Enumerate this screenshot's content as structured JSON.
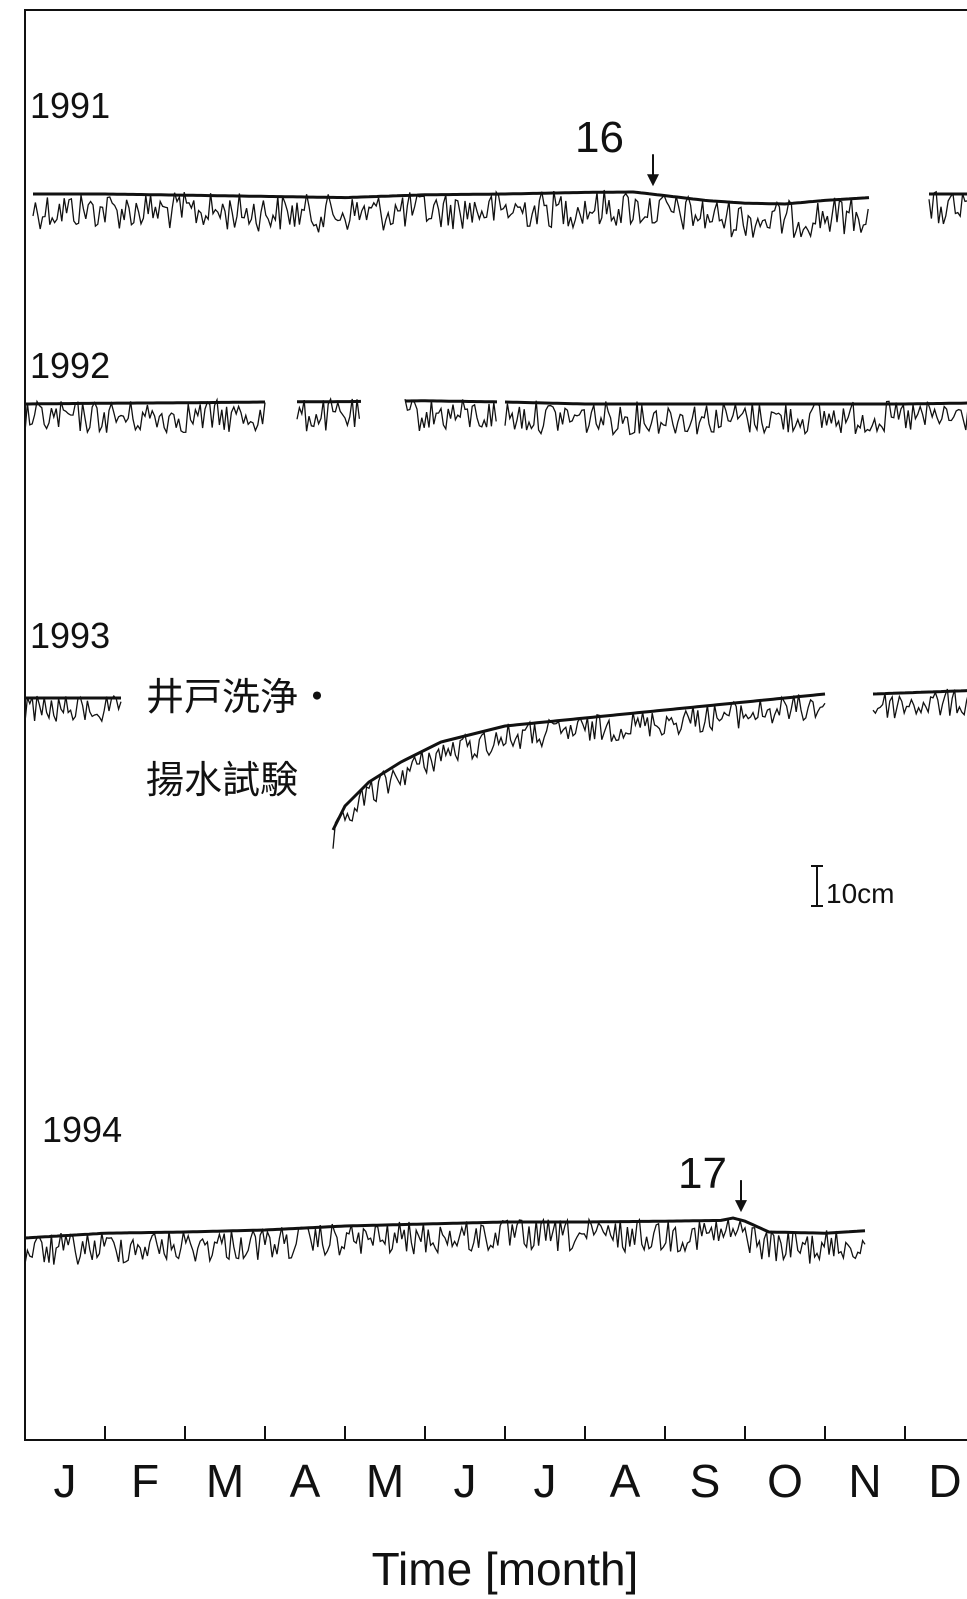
{
  "chart_data": {
    "type": "line",
    "months": [
      "J",
      "F",
      "M",
      "A",
      "M",
      "J",
      "J",
      "A",
      "S",
      "O",
      "N",
      "D"
    ],
    "xlabel": "Time [month]",
    "scale_bar": "10cm",
    "note_lines": [
      "井戸洗浄・",
      "揚水試験"
    ],
    "panels": [
      {
        "label": "1991",
        "segments": [
          [
            0.1,
            10.55
          ],
          [
            11.3,
            12.0
          ]
        ],
        "trend": [
          [
            0.1,
            0
          ],
          [
            1.0,
            0
          ],
          [
            2.0,
            -0.3
          ],
          [
            3.0,
            -0.6
          ],
          [
            4.0,
            -0.9
          ],
          [
            5.0,
            -0.2
          ],
          [
            6.0,
            0
          ],
          [
            7.0,
            0.4
          ],
          [
            7.6,
            0.5
          ],
          [
            8.0,
            -0.4
          ],
          [
            8.5,
            -1.6
          ],
          [
            9.0,
            -2.3
          ],
          [
            9.5,
            -2.5
          ],
          [
            10.0,
            -1.6
          ],
          [
            10.55,
            -0.9
          ],
          [
            11.3,
            0
          ],
          [
            12.0,
            0
          ]
        ],
        "event": {
          "label": "16",
          "month": 7.85
        }
      },
      {
        "label": "1992",
        "segments": [
          [
            0.0,
            3.0
          ],
          [
            3.4,
            4.2
          ],
          [
            4.75,
            5.9
          ],
          [
            6.0,
            12.0
          ]
        ],
        "trend": [
          [
            0.0,
            0
          ],
          [
            1.0,
            0.2
          ],
          [
            2.0,
            0.3
          ],
          [
            3.0,
            0.5
          ],
          [
            4.0,
            0.6
          ],
          [
            5.0,
            0.8
          ],
          [
            6.0,
            0.5
          ],
          [
            7.0,
            0
          ],
          [
            8.0,
            0
          ],
          [
            9.0,
            0
          ],
          [
            10.0,
            0
          ],
          [
            11.0,
            0
          ],
          [
            12.0,
            0.3
          ]
        ]
      },
      {
        "label": "1993",
        "segments": [
          [
            0.0,
            1.2
          ],
          [
            3.85,
            10.0
          ],
          [
            10.6,
            12.0
          ]
        ],
        "trend": [
          [
            0.0,
            0
          ],
          [
            1.2,
            0
          ],
          [
            3.85,
            -33
          ],
          [
            4.0,
            -27
          ],
          [
            4.3,
            -21
          ],
          [
            4.7,
            -16
          ],
          [
            5.2,
            -11
          ],
          [
            6.0,
            -7
          ],
          [
            7.0,
            -5
          ],
          [
            8.0,
            -3
          ],
          [
            9.0,
            -1
          ],
          [
            10.0,
            1
          ],
          [
            10.6,
            1
          ],
          [
            12.0,
            2
          ]
        ]
      },
      {
        "label": "1994",
        "segments": [
          [
            0.0,
            10.5
          ]
        ],
        "trend": [
          [
            0.0,
            0
          ],
          [
            1.0,
            1.2
          ],
          [
            2.0,
            1.5
          ],
          [
            3.0,
            2.0
          ],
          [
            4.0,
            3.0
          ],
          [
            5.0,
            3.5
          ],
          [
            6.0,
            4.0
          ],
          [
            7.0,
            4.0
          ],
          [
            8.0,
            4.2
          ],
          [
            8.7,
            4.4
          ],
          [
            8.85,
            5.0
          ],
          [
            9.0,
            4.2
          ],
          [
            9.3,
            1.5
          ],
          [
            10.0,
            1.2
          ],
          [
            10.5,
            1.8
          ]
        ],
        "event": {
          "label": "17",
          "month": 8.95
        }
      }
    ]
  }
}
